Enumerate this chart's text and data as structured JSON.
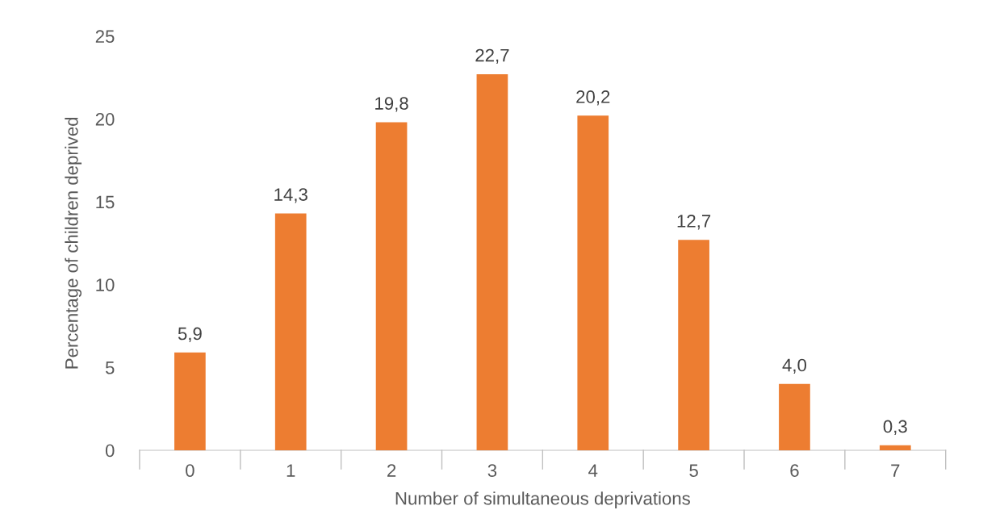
{
  "chart_data": {
    "type": "bar",
    "xlabel": "Number of simultaneous deprivations",
    "ylabel": "Percentage of children deprived",
    "categories": [
      "0",
      "1",
      "2",
      "3",
      "4",
      "5",
      "6",
      "7"
    ],
    "values": [
      5.9,
      14.3,
      19.8,
      22.7,
      20.2,
      12.7,
      4.0,
      0.3
    ],
    "value_labels": [
      "5,9",
      "14,3",
      "19,8",
      "22,7",
      "20,2",
      "12,7",
      "4,0",
      "0,3"
    ],
    "color": "#ed7d31",
    "ylim": [
      0,
      25
    ],
    "yticks": [
      0,
      5,
      10,
      15,
      20,
      25
    ],
    "grid": false,
    "legend": false
  }
}
